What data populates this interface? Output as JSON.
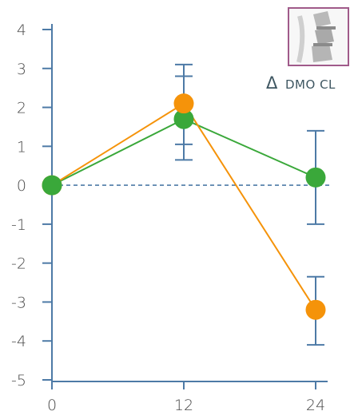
{
  "chart_data": {
    "type": "line",
    "x": [
      0,
      12,
      24
    ],
    "xticks": [
      "0",
      "12",
      "24"
    ],
    "yticks": [
      "4",
      "3",
      "2",
      "1",
      "0",
      "-1",
      "-2",
      "-3",
      "-4",
      "-5"
    ],
    "ylim": [
      -5,
      4
    ],
    "reference_line_y": 0,
    "series": [
      {
        "values": [
          0,
          1.7,
          0.2
        ],
        "error_bars": [
          null,
          [
            0.65,
            2.8
          ],
          [
            -1.0,
            1.4
          ]
        ],
        "color": "#3aa83a"
      },
      {
        "values": [
          0,
          2.1,
          -3.2
        ],
        "error_bars": [
          null,
          [
            1.05,
            3.1
          ],
          [
            -4.1,
            -2.35
          ]
        ],
        "color": "#f5930a"
      }
    ],
    "legend": {
      "delta_symbol": "Δ",
      "label": "DMO CL",
      "icon": "spine-icon",
      "placement": "top-right"
    },
    "colors": {
      "axis": "#4d7aa6",
      "error_bars": "#4d7aa6",
      "icon_border": "#a05a8a"
    }
  }
}
